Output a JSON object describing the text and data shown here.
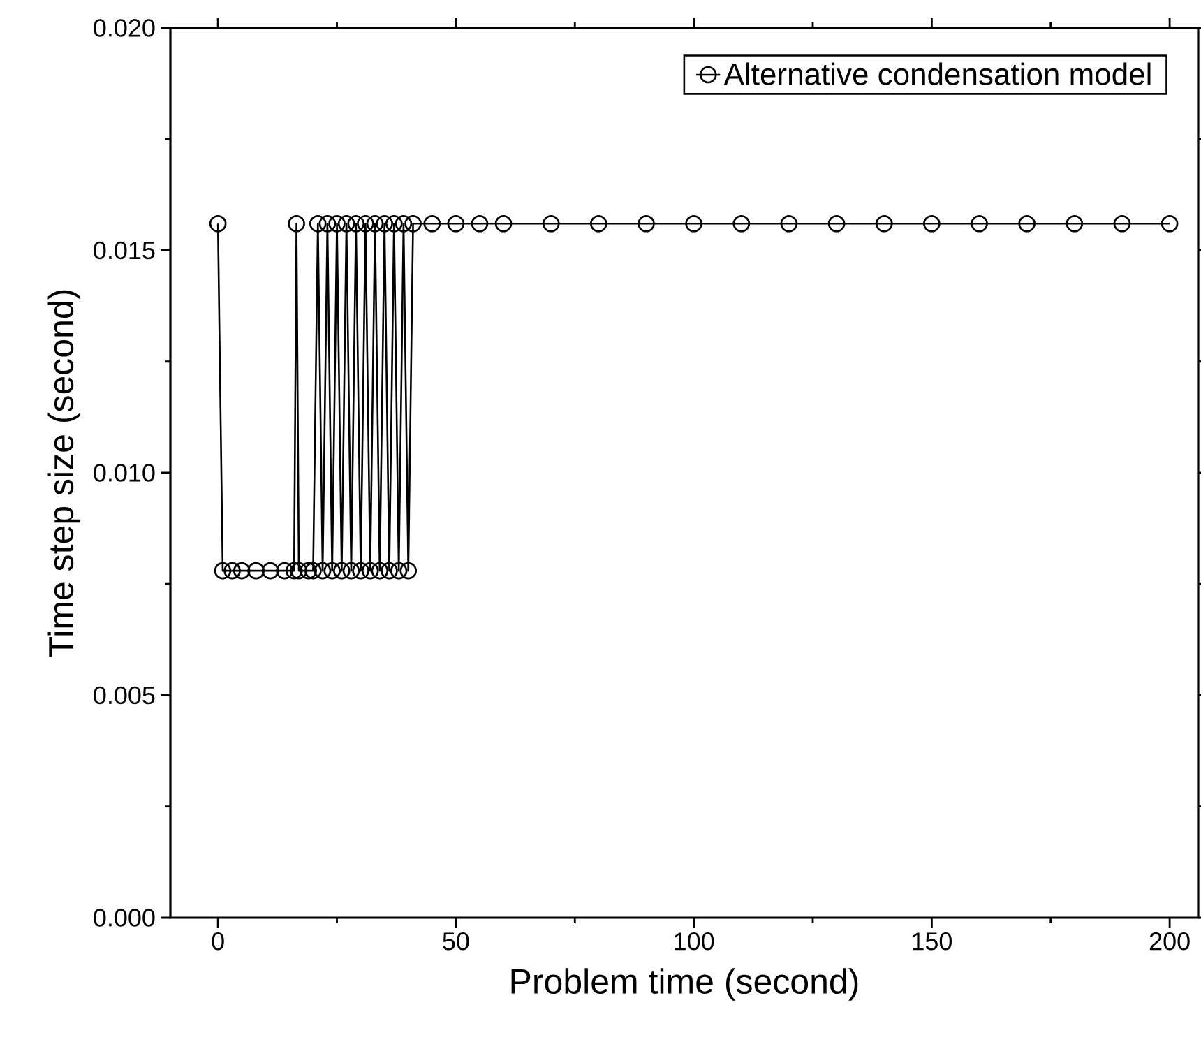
{
  "chart_data": {
    "type": "line",
    "xlabel": "Problem time (second)",
    "ylabel": "Time step size (second)",
    "xlim": [
      -10,
      206
    ],
    "ylim": [
      0,
      0.02
    ],
    "xticks": [
      0,
      50,
      100,
      150,
      200
    ],
    "yticks": [
      {
        "value": 0,
        "label": "0.000"
      },
      {
        "value": 0.005,
        "label": "0.005"
      },
      {
        "value": 0.01,
        "label": "0.010"
      },
      {
        "value": 0.015,
        "label": "0.015"
      },
      {
        "value": 0.02,
        "label": "0.020"
      }
    ],
    "legend": "top right",
    "marker": "circle",
    "line_style": "solid",
    "x": [
      0,
      1,
      3,
      5,
      8,
      11,
      14,
      16,
      16.5,
      17,
      19,
      20,
      21,
      22,
      23,
      24,
      25,
      26,
      27,
      28,
      29,
      30,
      31,
      32,
      33,
      34,
      35,
      36,
      37,
      38,
      39,
      40,
      41,
      45,
      50,
      55,
      60,
      70,
      80,
      90,
      100,
      110,
      120,
      130,
      140,
      150,
      160,
      170,
      180,
      190,
      200
    ],
    "series": [
      {
        "name": "Alternative condensation model",
        "color": "#000000",
        "values": [
          0.0156,
          0.0078,
          0.0078,
          0.0078,
          0.0078,
          0.0078,
          0.0078,
          0.0078,
          0.0156,
          0.0078,
          0.0078,
          0.0078,
          0.0156,
          0.0078,
          0.0156,
          0.0078,
          0.0156,
          0.0078,
          0.0156,
          0.0078,
          0.0156,
          0.0078,
          0.0156,
          0.0078,
          0.0156,
          0.0078,
          0.0156,
          0.0078,
          0.0156,
          0.0078,
          0.0156,
          0.0078,
          0.0156,
          0.0156,
          0.0156,
          0.0156,
          0.0156,
          0.0156,
          0.0156,
          0.0156,
          0.0156,
          0.0156,
          0.0156,
          0.0156,
          0.0156,
          0.0156,
          0.0156,
          0.0156,
          0.0156,
          0.0156,
          0.0156
        ]
      }
    ]
  }
}
